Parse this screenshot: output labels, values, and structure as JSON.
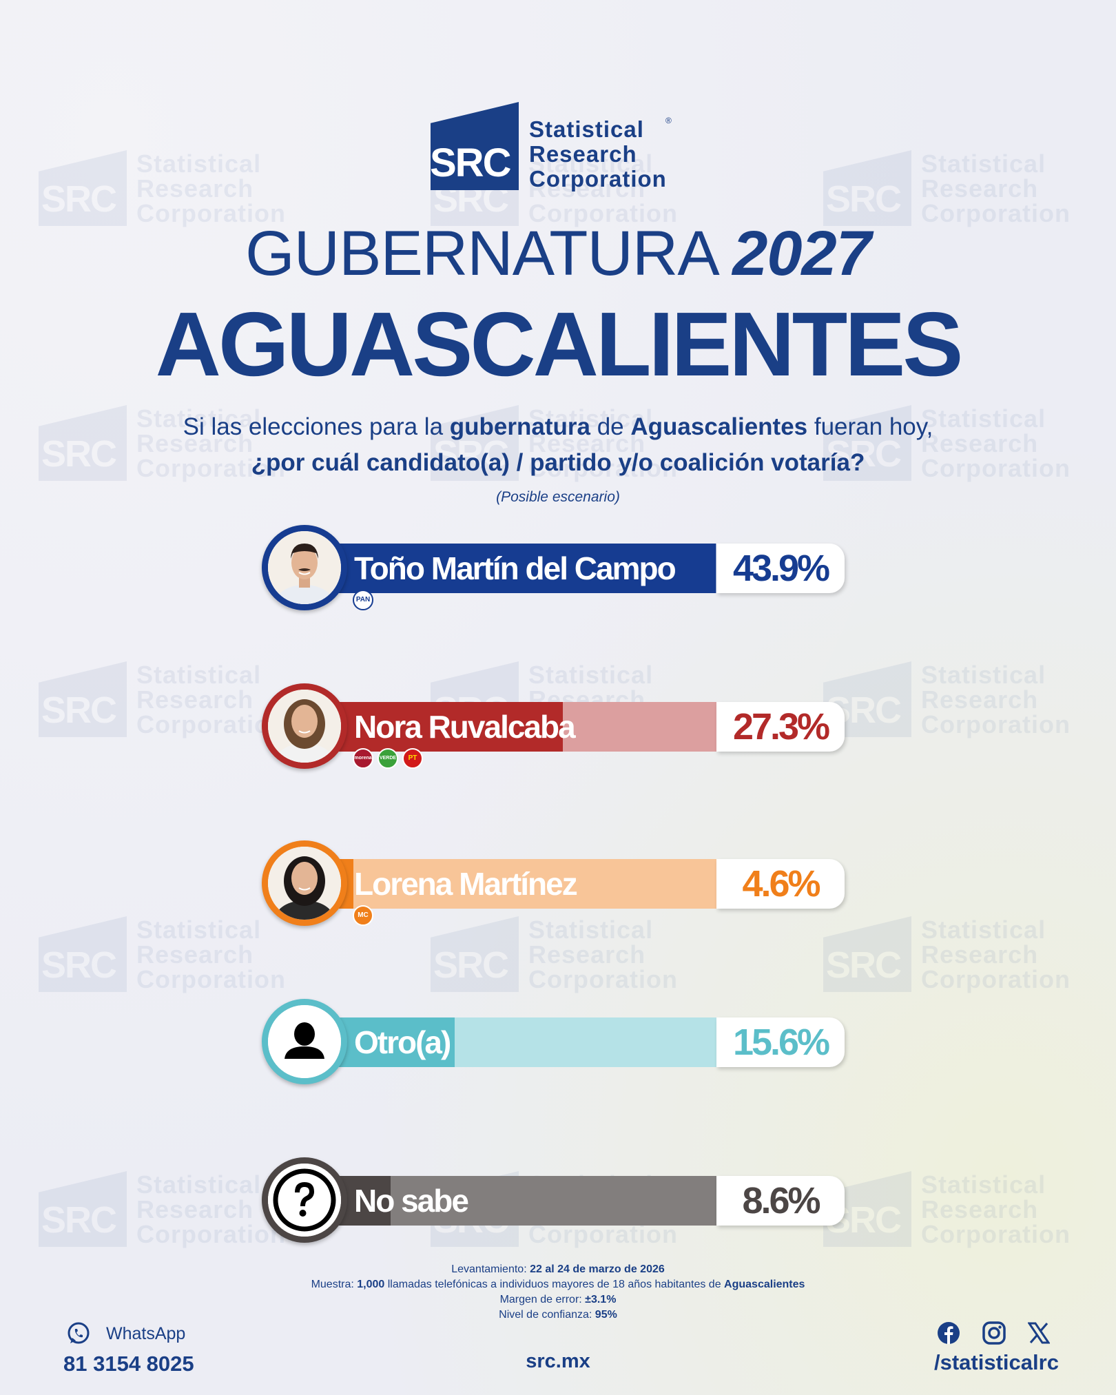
{
  "brand": {
    "logo_mark": "SRC",
    "name_line1": "Statistical",
    "name_line2": "Research",
    "name_line3": "Corporation",
    "registered": "®"
  },
  "title": {
    "line1_prefix": "GUBERNATURA",
    "line1_year": "2027",
    "line2": "AGUASCALIENTES"
  },
  "question": {
    "p1": "Si las elecciones para la ",
    "b1": "gubernatura",
    "p2": " de ",
    "b2": "Aguascalientes",
    "p3": " fueran hoy,",
    "b3": "¿por cuál candidato(a) / partido y/o coalición votaría?"
  },
  "scenario": "(Posible escenario)",
  "chart_data": {
    "type": "bar",
    "orientation": "horizontal",
    "categories": [
      "Toño Martín del Campo",
      "Nora Ruvalcaba",
      "Lorena Martínez",
      "Otro(a)",
      "No sabe"
    ],
    "values": [
      43.9,
      27.3,
      4.6,
      15.6,
      8.6
    ],
    "value_labels": [
      "43.9%",
      "27.3%",
      "4.6%",
      "15.6%",
      "8.6%"
    ],
    "xlim": [
      0,
      50
    ],
    "colors": [
      "#163c91",
      "#b22a29",
      "#f07f1a",
      "#5bbec9",
      "#4c4645"
    ],
    "parties": [
      [
        "PAN"
      ],
      [
        "morena",
        "VERDE",
        "PT"
      ],
      [
        "MC"
      ],
      [],
      []
    ],
    "icons": [
      "candidate-photo",
      "candidate-photo",
      "candidate-photo",
      "person-icon",
      "question-icon"
    ]
  },
  "methodology": {
    "l1_label": "Levantamiento: ",
    "l1_value": "22 al 24 de marzo de 2026",
    "l2_label": "Muestra: ",
    "l2_value": "1,000",
    "l2_mid": " llamadas telefónicas a individuos mayores de 18 años habitantes de ",
    "l2_place": "Aguascalientes",
    "l3_label": "Margen de error: ",
    "l3_value": "±3.1%",
    "l4_label": "Nivel de confianza: ",
    "l4_value": "95%"
  },
  "footer": {
    "whatsapp_label": "WhatsApp",
    "whatsapp_number": "81 3154 8025",
    "website": "src.mx",
    "social_handle": "/statisticalrc",
    "social_icons": [
      "facebook-icon",
      "instagram-icon",
      "x-icon"
    ]
  }
}
